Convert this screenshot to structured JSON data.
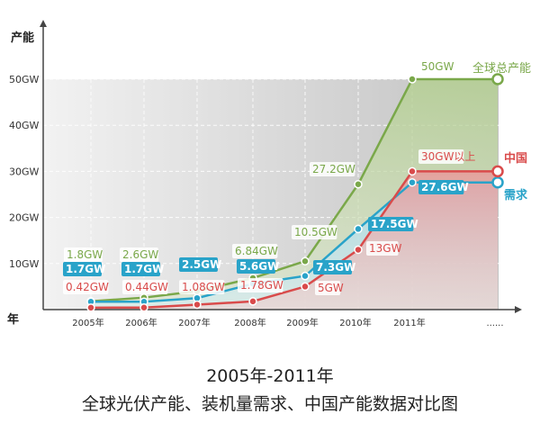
{
  "caption": {
    "years": "2005年-2011年",
    "description": "全球光伏产能、装机量需求、中国产能数据对比图"
  },
  "chart_data": {
    "type": "area",
    "ylabel": "产能",
    "xlabel": "年",
    "ylim": [
      0,
      50
    ],
    "yticks": [
      {
        "v": 10,
        "label": "10GW"
      },
      {
        "v": 20,
        "label": "20GW"
      },
      {
        "v": 30,
        "label": "30GW"
      },
      {
        "v": 40,
        "label": "40GW"
      },
      {
        "v": 50,
        "label": "50GW"
      }
    ],
    "categories": [
      "2005年",
      "2006年",
      "2007年",
      "2008年",
      "2009年",
      "2010年",
      "2011年",
      "......"
    ],
    "grid": true,
    "series": [
      {
        "name": "全球总产能",
        "color": "#7aa84a",
        "values": [
          1.8,
          2.6,
          4.0,
          6.84,
          10.5,
          27.2,
          50,
          50
        ],
        "labels": [
          "1.8GW",
          "2.6GW",
          "",
          "6.84GW",
          "10.5GW",
          "27.2GW",
          "50GW",
          ""
        ]
      },
      {
        "name": "需求",
        "color": "#29a3c9",
        "values": [
          1.7,
          1.7,
          2.5,
          5.6,
          7.3,
          17.5,
          27.6,
          27.6
        ],
        "labels": [
          "1.7GW",
          "1.7GW",
          "2.5GW",
          "5.6GW",
          "7.3GW",
          "17.5GW",
          "27.6GW",
          ""
        ]
      },
      {
        "name": "中国",
        "color": "#d94b4b",
        "values": [
          0.42,
          0.44,
          1.08,
          1.78,
          5,
          13,
          30,
          30
        ],
        "labels": [
          "0.42GW",
          "0.44GW",
          "1.08GW",
          "1.78GW",
          "5GW",
          "13GW",
          "30GW以上",
          ""
        ]
      }
    ]
  }
}
